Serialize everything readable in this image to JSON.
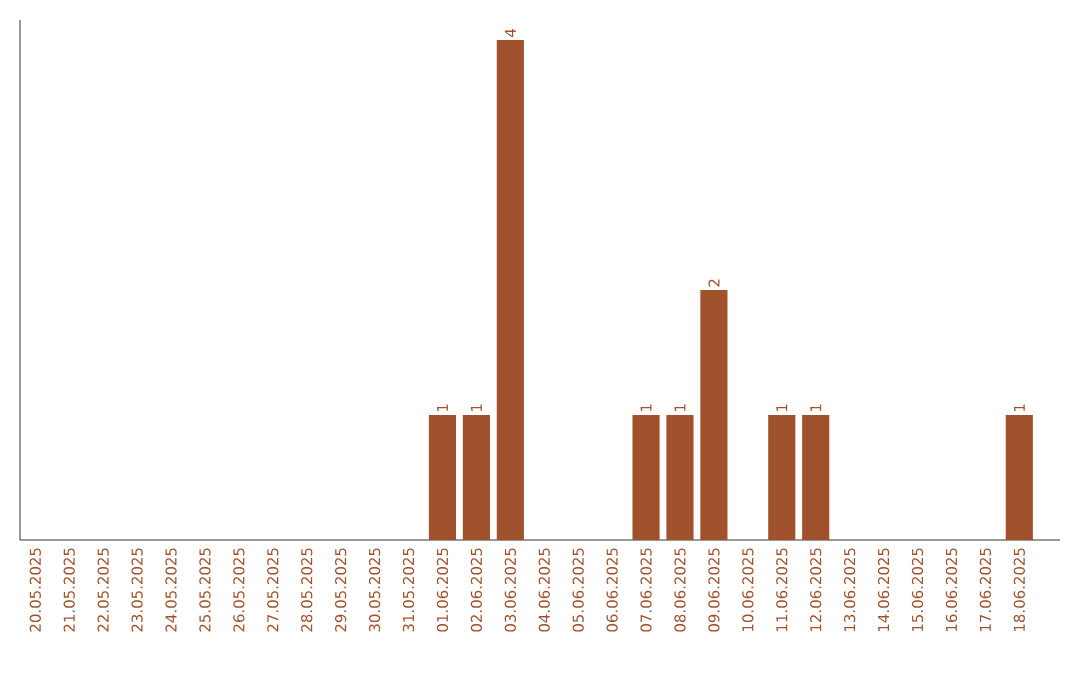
{
  "chart_data": {
    "type": "bar",
    "categories": [
      "20.05.2025",
      "21.05.2025",
      "22.05.2025",
      "23.05.2025",
      "24.05.2025",
      "25.05.2025",
      "26.05.2025",
      "27.05.2025",
      "28.05.2025",
      "29.05.2025",
      "30.05.2025",
      "31.05.2025",
      "01.06.2025",
      "02.06.2025",
      "03.06.2025",
      "04.06.2025",
      "05.06.2025",
      "06.06.2025",
      "07.06.2025",
      "08.06.2025",
      "09.06.2025",
      "10.06.2025",
      "11.06.2025",
      "12.06.2025",
      "13.06.2025",
      "14.06.2025",
      "15.06.2025",
      "16.06.2025",
      "17.06.2025",
      "18.06.2025"
    ],
    "values": [
      null,
      null,
      null,
      null,
      null,
      null,
      null,
      null,
      null,
      null,
      null,
      null,
      1,
      1,
      4,
      null,
      null,
      null,
      1,
      1,
      2,
      null,
      1,
      1,
      null,
      null,
      null,
      null,
      null,
      1
    ],
    "value_labels": [
      null,
      null,
      null,
      null,
      null,
      null,
      null,
      null,
      null,
      null,
      null,
      null,
      "1",
      "1",
      "4",
      null,
      null,
      null,
      "1",
      "1",
      "2",
      null,
      "1",
      "1",
      null,
      null,
      null,
      null,
      null,
      "1"
    ],
    "color": "#a0522d"
  }
}
